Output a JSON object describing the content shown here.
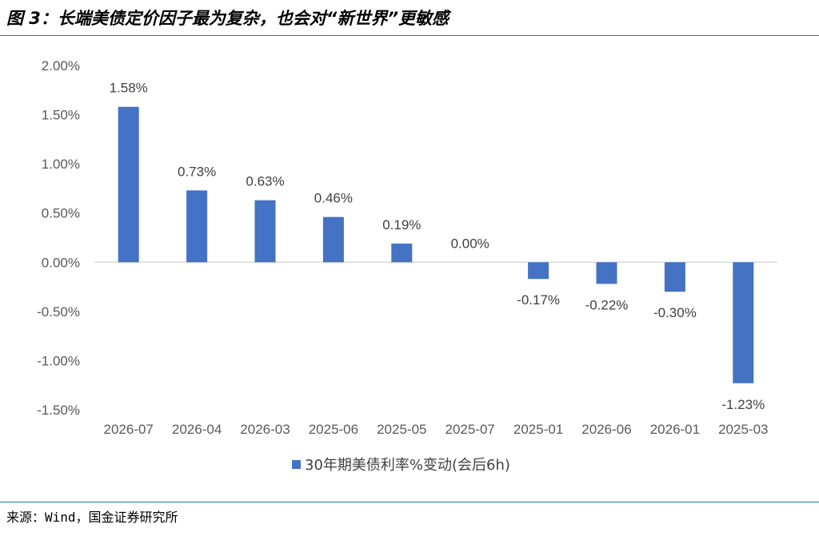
{
  "title": "图 3：长端美债定价因子最为复杂，也会对“新世界”更敏感",
  "source": "来源：Wind，国金证券研究所",
  "colors": {
    "bar": "#4472c4",
    "rule": "#2e75b6",
    "axis": "#d9d9d9"
  },
  "chart_data": {
    "type": "bar",
    "title": "",
    "xlabel": "",
    "ylabel": "",
    "categories": [
      "2026-07",
      "2026-04",
      "2026-03",
      "2025-06",
      "2025-05",
      "2025-07",
      "2025-01",
      "2026-06",
      "2026-01",
      "2025-03"
    ],
    "series": [
      {
        "name": "30年期美债利率%变动(会后6h)",
        "values": [
          1.58,
          0.73,
          0.63,
          0.46,
          0.19,
          0.0,
          -0.17,
          -0.22,
          -0.3,
          -1.23
        ]
      }
    ],
    "data_labels": [
      "1.58%",
      "0.73%",
      "0.63%",
      "0.46%",
      "0.19%",
      "0.00%",
      "-0.17%",
      "-0.22%",
      "-0.30%",
      "-1.23%"
    ],
    "ylim": [
      -1.5,
      2.0
    ],
    "yticks": [
      2.0,
      1.5,
      1.0,
      0.5,
      0.0,
      -0.5,
      -1.0,
      -1.5
    ],
    "ytick_labels": [
      "2.00%",
      "1.50%",
      "1.00%",
      "0.50%",
      "0.00%",
      "-0.50%",
      "-1.00%",
      "-1.50%"
    ],
    "grid": false,
    "legend": "bottom"
  }
}
